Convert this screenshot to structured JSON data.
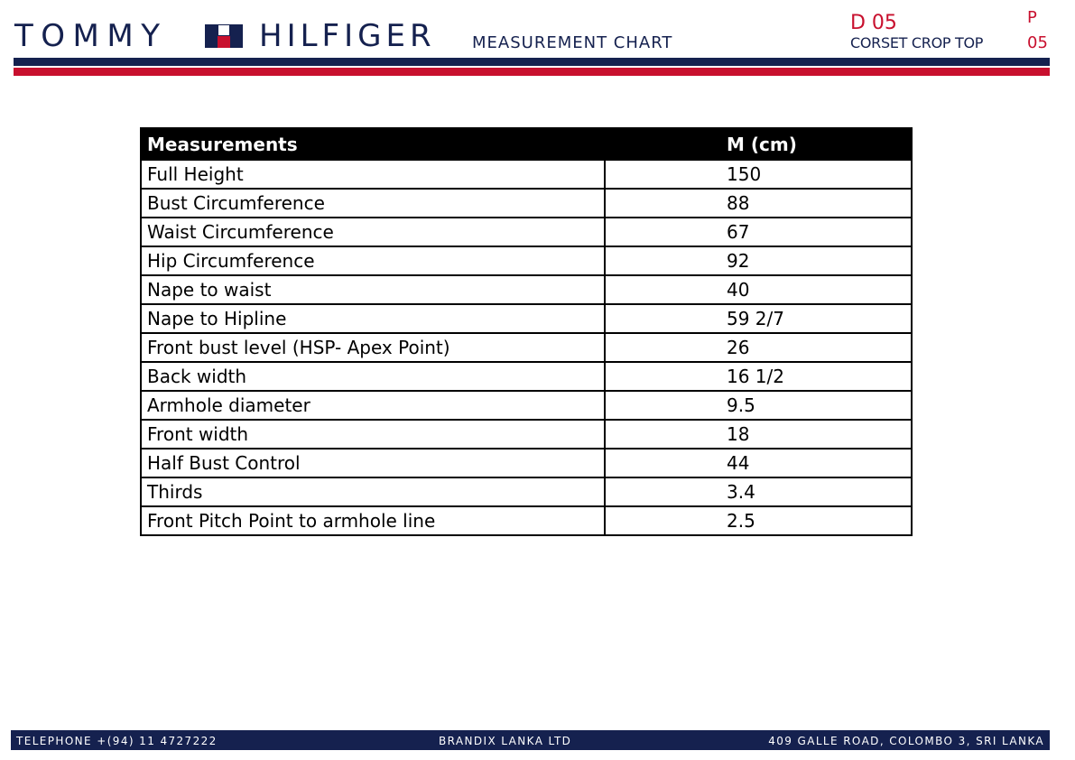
{
  "header": {
    "brand_left": "TOMMY",
    "brand_right": "HILFIGER",
    "doc_title": "MEASUREMENT CHART",
    "code": "D 05",
    "product": "CORSET CROP TOP",
    "page_label": "P",
    "page_number": "05"
  },
  "colors": {
    "navy": "#15214f",
    "red": "#c8102e",
    "header_fill": "#000000"
  },
  "table": {
    "headers": [
      "Measurements",
      "M (cm)"
    ],
    "rows": [
      {
        "label": "Full Height",
        "value": "150"
      },
      {
        "label": "Bust Circumference",
        "value": "88"
      },
      {
        "label": "Waist Circumference",
        "value": "67"
      },
      {
        "label": "Hip Circumference",
        "value": "92"
      },
      {
        "label": "Nape to waist",
        "value": "40"
      },
      {
        "label": "Nape to Hipline",
        "value": "59 2/7"
      },
      {
        "label": "Front bust level (HSP- Apex Point)",
        "value": "26"
      },
      {
        "label": "Back width",
        "value": "16 1/2"
      },
      {
        "label": "Armhole diameter",
        "value": "9.5"
      },
      {
        "label": "Front width",
        "value": "18"
      },
      {
        "label": "Half Bust Control",
        "value": "44"
      },
      {
        "label": "Thirds",
        "value": "3.4"
      },
      {
        "label": "Front Pitch Point to armhole line",
        "value": "2.5"
      }
    ]
  },
  "footer": {
    "telephone": "TELEPHONE   +(94) 11 4727222",
    "company": "BRANDIX LANKA LTD",
    "address": "409 GALLE ROAD, COLOMBO 3, SRI LANKA"
  }
}
